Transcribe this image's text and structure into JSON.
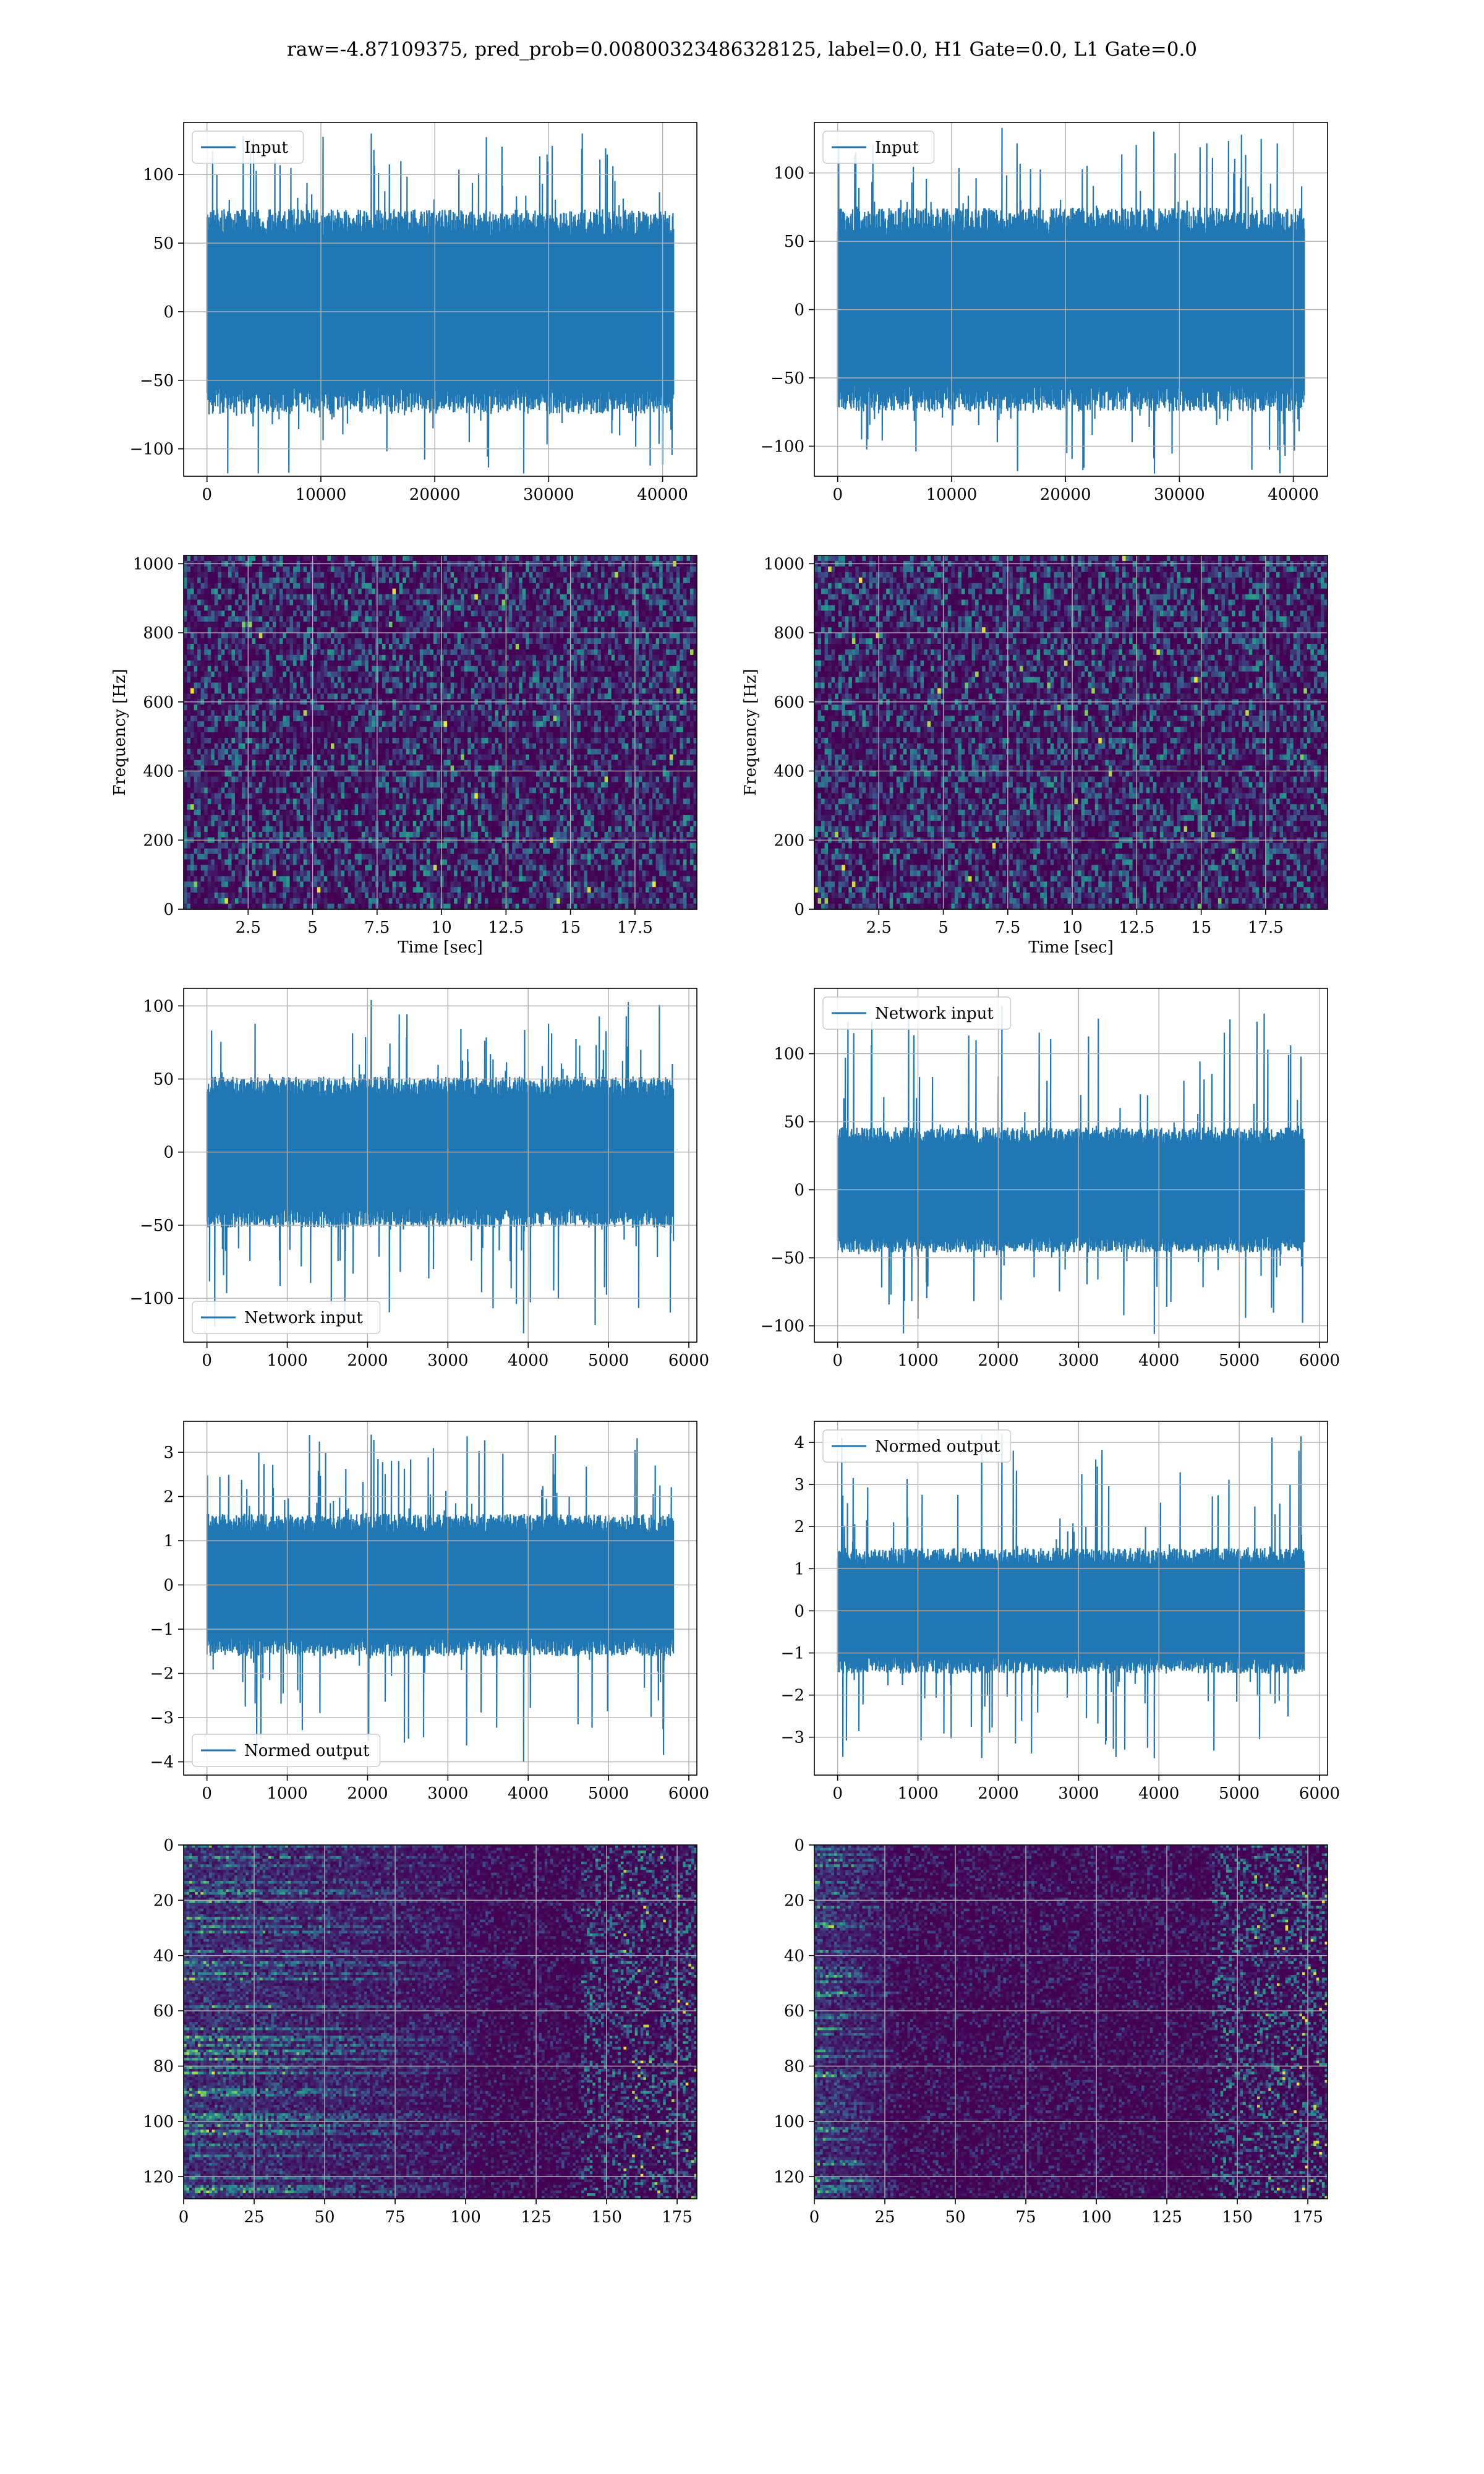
{
  "figure": {
    "title": "raw=-4.87109375, pred_prob=0.00800323486328125, label=0.0, H1 Gate=0.0, L1 Gate=0.0"
  },
  "colors": {
    "series": "#1f77b4",
    "grid": "#b0b0b0",
    "spine": "#000000",
    "viridis_low": "#440154",
    "viridis_high": "#fde725"
  },
  "chart_data": [
    {
      "id": "p1",
      "type": "line",
      "legend": [
        "Input"
      ],
      "legend_loc": "upper-left",
      "xlabel": "",
      "ylabel": "",
      "xlim": [
        -2048,
        43008
      ],
      "ylim": [
        -120,
        138
      ],
      "xticks": [
        0,
        10000,
        20000,
        30000,
        40000
      ],
      "yticks": [
        -100,
        -50,
        0,
        50,
        100
      ],
      "series": [
        {
          "name": "Input",
          "x_range": [
            0,
            40960
          ],
          "amplitude_core": 65,
          "spike_max": 130,
          "spike_min": -118
        }
      ],
      "grid": true
    },
    {
      "id": "p2",
      "type": "line",
      "legend": [
        "Input"
      ],
      "legend_loc": "upper-left",
      "xlabel": "",
      "ylabel": "",
      "xlim": [
        -2048,
        43008
      ],
      "ylim": [
        -122,
        137
      ],
      "xticks": [
        0,
        10000,
        20000,
        30000,
        40000
      ],
      "yticks": [
        -100,
        -50,
        0,
        50,
        100
      ],
      "series": [
        {
          "name": "Input",
          "x_range": [
            0,
            40960
          ],
          "amplitude_core": 65,
          "spike_max": 133,
          "spike_min": -120
        }
      ],
      "grid": true
    },
    {
      "id": "p3",
      "type": "heatmap",
      "xlabel": "Time [sec]",
      "ylabel": "Frequency [Hz]",
      "xlim": [
        0,
        19.9
      ],
      "ylim": [
        0,
        1024
      ],
      "xticks": [
        2.5,
        5.0,
        7.5,
        10.0,
        12.5,
        15.0,
        17.5
      ],
      "yticks": [
        0,
        200,
        400,
        600,
        800,
        1000
      ],
      "colormap": "viridis",
      "grid": true
    },
    {
      "id": "p4",
      "type": "heatmap",
      "xlabel": "Time [sec]",
      "ylabel": "Frequency [Hz]",
      "xlim": [
        0,
        19.9
      ],
      "ylim": [
        0,
        1024
      ],
      "xticks": [
        2.5,
        5.0,
        7.5,
        10.0,
        12.5,
        15.0,
        17.5
      ],
      "yticks": [
        0,
        200,
        400,
        600,
        800,
        1000
      ],
      "colormap": "viridis",
      "grid": true
    },
    {
      "id": "p5",
      "type": "line",
      "legend": [
        "Network input"
      ],
      "legend_loc": "lower-left",
      "xlabel": "",
      "ylabel": "",
      "xlim": [
        -290,
        6100
      ],
      "ylim": [
        -130,
        112
      ],
      "xticks": [
        0,
        1000,
        2000,
        3000,
        4000,
        5000,
        6000
      ],
      "yticks": [
        -100,
        -50,
        0,
        50,
        100
      ],
      "series": [
        {
          "name": "Network input",
          "x_range": [
            0,
            5808
          ],
          "amplitude_core": 45,
          "spike_max": 104,
          "spike_min": -124
        }
      ],
      "grid": true
    },
    {
      "id": "p6",
      "type": "line",
      "legend": [
        "Network input"
      ],
      "legend_loc": "upper-left",
      "xlabel": "",
      "ylabel": "",
      "xlim": [
        -290,
        6100
      ],
      "ylim": [
        -112,
        148
      ],
      "xticks": [
        0,
        1000,
        2000,
        3000,
        4000,
        5000,
        6000
      ],
      "yticks": [
        -100,
        -50,
        0,
        50,
        100
      ],
      "series": [
        {
          "name": "Network input",
          "x_range": [
            0,
            5808
          ],
          "amplitude_core": 40,
          "spike_max": 135,
          "spike_min": -106
        }
      ],
      "grid": true
    },
    {
      "id": "p7",
      "type": "line",
      "legend": [
        "Normed output"
      ],
      "legend_loc": "lower-left",
      "xlabel": "",
      "ylabel": "",
      "xlim": [
        -290,
        6100
      ],
      "ylim": [
        -4.3,
        3.7
      ],
      "xticks": [
        0,
        1000,
        2000,
        3000,
        4000,
        5000,
        6000
      ],
      "yticks": [
        -4,
        -3,
        -2,
        -1,
        0,
        1,
        2,
        3
      ],
      "series": [
        {
          "name": "Normed output",
          "x_range": [
            0,
            5808
          ],
          "amplitude_core": 1.4,
          "spike_max": 3.4,
          "spike_min": -4.0
        }
      ],
      "grid": true
    },
    {
      "id": "p8",
      "type": "line",
      "legend": [
        "Normed output"
      ],
      "legend_loc": "upper-left",
      "xlabel": "",
      "ylabel": "",
      "xlim": [
        -290,
        6100
      ],
      "ylim": [
        -3.9,
        4.5
      ],
      "xticks": [
        0,
        1000,
        2000,
        3000,
        4000,
        5000,
        6000
      ],
      "yticks": [
        -3,
        -2,
        -1,
        0,
        1,
        2,
        3,
        4
      ],
      "series": [
        {
          "name": "Normed output",
          "x_range": [
            0,
            5808
          ],
          "amplitude_core": 1.3,
          "spike_max": 4.2,
          "spike_min": -3.5
        }
      ],
      "grid": true
    },
    {
      "id": "p9",
      "type": "heatmap",
      "xlabel": "",
      "ylabel": "",
      "xlim": [
        0,
        182
      ],
      "ylim": [
        128,
        0
      ],
      "xticks": [
        0,
        25,
        50,
        75,
        100,
        125,
        150,
        175
      ],
      "yticks": [
        0,
        20,
        40,
        60,
        80,
        100,
        120
      ],
      "colormap": "viridis",
      "grid": true
    },
    {
      "id": "p10",
      "type": "heatmap",
      "xlabel": "",
      "ylabel": "",
      "xlim": [
        0,
        182
      ],
      "ylim": [
        128,
        0
      ],
      "xticks": [
        0,
        25,
        50,
        75,
        100,
        125,
        150,
        175
      ],
      "yticks": [
        0,
        20,
        40,
        60,
        80,
        100,
        120
      ],
      "colormap": "viridis",
      "grid": true
    }
  ]
}
